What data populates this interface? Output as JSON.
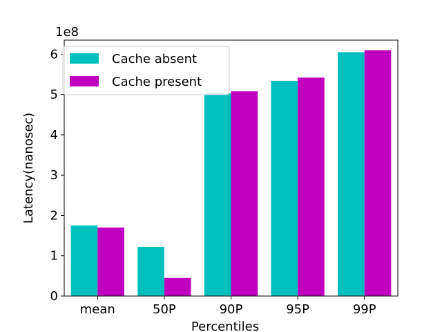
{
  "chart_data": {
    "type": "bar",
    "categories": [
      "mean",
      "50P",
      "90P",
      "95P",
      "99P"
    ],
    "series": [
      {
        "name": "Cache absent",
        "color": "#00bfbf",
        "values": [
          175000000,
          122000000,
          503000000,
          534000000,
          605000000
        ]
      },
      {
        "name": "Cache present",
        "color": "#bf00bf",
        "values": [
          170000000,
          45000000,
          508000000,
          542000000,
          610000000
        ]
      }
    ],
    "xlabel": "Percentiles",
    "ylabel": "Latency(nanosec)",
    "y_offset_label": "1e8",
    "y_scale": 100000000,
    "ylim": [
      0,
      635000000
    ],
    "yticks": [
      0,
      1,
      2,
      3,
      4,
      5,
      6
    ],
    "grid": false,
    "legend_position": "upper-left"
  }
}
